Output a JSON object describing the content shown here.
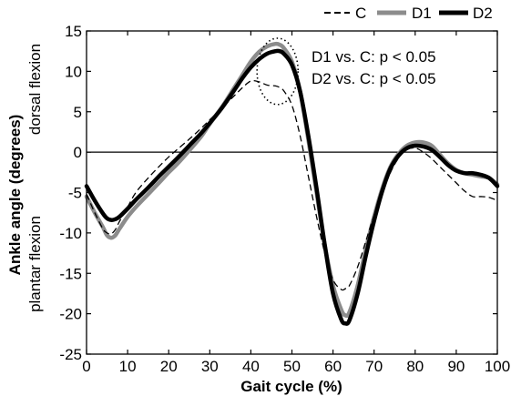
{
  "chart_data": {
    "type": "line",
    "xlabel": "Gait cycle (%)",
    "ylabel": "Ankle angle (degrees)",
    "ylabel_upper": "dorsal flexion",
    "ylabel_lower": "plantar flexion",
    "xlim": [
      0,
      100
    ],
    "ylim": [
      -25,
      15
    ],
    "xticks": [
      0,
      10,
      20,
      30,
      40,
      50,
      60,
      70,
      80,
      90,
      100
    ],
    "yticks": [
      -25,
      -20,
      -15,
      -10,
      -5,
      0,
      5,
      10,
      15
    ],
    "grid": false,
    "legend_position": "top-right",
    "reference_line": 0,
    "annotations": [
      "D1 vs. C: p < 0.05",
      "D2 vs. C: p < 0.05"
    ],
    "highlight_region": {
      "x_center": 46.5,
      "y_center": 10.0,
      "x_radius": 5.0,
      "y_radius": 4.1
    },
    "x": [
      0,
      2,
      4,
      5,
      6,
      7,
      8,
      10,
      12,
      15,
      18,
      20,
      22,
      25,
      28,
      30,
      33,
      36,
      38,
      40,
      42,
      44,
      46,
      47,
      48,
      50,
      52,
      54,
      56,
      58,
      60,
      62,
      63,
      64,
      66,
      68,
      70,
      72,
      74,
      76,
      78,
      80,
      82,
      84,
      86,
      88,
      90,
      92,
      94,
      96,
      98,
      100
    ],
    "series": [
      {
        "name": "C",
        "style": "dashed",
        "color": "#000000",
        "values": [
          -5.2,
          -7.5,
          -9.5,
          -10.0,
          -10.1,
          -9.6,
          -8.6,
          -6.8,
          -5.0,
          -3.2,
          -1.6,
          -0.6,
          0.3,
          1.6,
          3.0,
          4.0,
          5.5,
          7.0,
          8.0,
          8.8,
          8.7,
          8.3,
          8.2,
          8.0,
          7.6,
          5.8,
          2.0,
          -3.0,
          -8.0,
          -12.5,
          -15.8,
          -17.0,
          -16.9,
          -16.5,
          -14.2,
          -11.0,
          -7.8,
          -5.0,
          -2.5,
          -0.7,
          0.3,
          0.5,
          0.0,
          -0.8,
          -1.8,
          -2.8,
          -3.8,
          -4.8,
          -5.5,
          -5.5,
          -5.6,
          -6.0
        ]
      },
      {
        "name": "D1",
        "style": "solid-thick",
        "color": "#8c8c8c",
        "values": [
          -5.5,
          -7.5,
          -9.3,
          -10.3,
          -10.6,
          -10.3,
          -9.5,
          -8.0,
          -6.8,
          -5.2,
          -3.6,
          -2.5,
          -1.5,
          0.2,
          2.0,
          3.5,
          5.6,
          8.0,
          9.6,
          11.2,
          12.4,
          13.1,
          13.4,
          13.3,
          12.9,
          11.2,
          7.5,
          1.5,
          -5.0,
          -11.5,
          -16.5,
          -19.5,
          -20.2,
          -19.8,
          -16.5,
          -12.0,
          -8.0,
          -4.5,
          -1.8,
          -0.2,
          0.8,
          1.2,
          1.2,
          0.8,
          -0.3,
          -1.4,
          -2.2,
          -2.6,
          -2.8,
          -3.0,
          -3.2,
          -4.0
        ]
      },
      {
        "name": "D2",
        "style": "solid-thick",
        "color": "#000000",
        "values": [
          -4.2,
          -6.0,
          -7.6,
          -8.2,
          -8.4,
          -8.3,
          -8.0,
          -7.0,
          -5.9,
          -4.4,
          -2.8,
          -1.8,
          -0.8,
          0.8,
          2.4,
          3.6,
          5.5,
          7.7,
          9.2,
          10.5,
          11.5,
          12.2,
          12.5,
          12.5,
          12.2,
          10.8,
          7.5,
          2.0,
          -4.5,
          -11.5,
          -17.5,
          -20.7,
          -21.2,
          -20.8,
          -17.5,
          -12.8,
          -8.5,
          -4.8,
          -2.0,
          -0.4,
          0.5,
          0.8,
          0.7,
          0.3,
          -0.6,
          -1.6,
          -2.3,
          -2.6,
          -2.6,
          -2.8,
          -3.2,
          -4.2
        ]
      }
    ]
  }
}
